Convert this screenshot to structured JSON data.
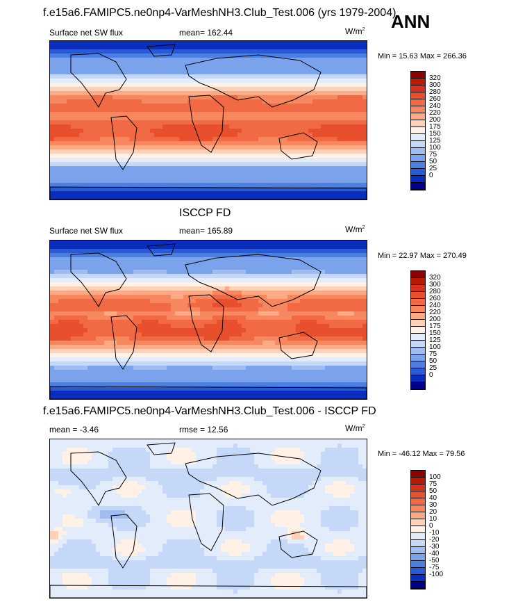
{
  "season": "ANN",
  "panels": [
    {
      "title": "f.e15a6.FAMIPC5.ne0np4-VarMeshNH3.Club_Test.006 (yrs 1979-2004)",
      "left_label": "Surface net SW flux",
      "mid_label": "mean= 162.44",
      "units": "W/m",
      "units_sup": "2",
      "min_max": "Min =  15.63 Max = 266.36",
      "colorbar": {
        "ticks": [
          "320",
          "300",
          "280",
          "260",
          "240",
          "220",
          "200",
          "175",
          "150",
          "125",
          "100",
          "75",
          "50",
          "25",
          "0"
        ],
        "colors": [
          "#8b0000",
          "#b81a06",
          "#d7301f",
          "#e8502d",
          "#f26a44",
          "#f7875f",
          "#fbaa85",
          "#fdd1b8",
          "#fff1e6",
          "#e3ecfa",
          "#c5d8f7",
          "#9fbdf2",
          "#7aa3ec",
          "#4d7fe0",
          "#2a5bd6",
          "#0b2dbd",
          "#00008b"
        ]
      }
    },
    {
      "title": "ISCCP FD",
      "left_label": "Surface net SW flux",
      "mid_label": "mean= 165.89",
      "units": "W/m",
      "units_sup": "2",
      "min_max": "Min =  22.97 Max = 270.49",
      "colorbar": {
        "ticks": [
          "320",
          "300",
          "280",
          "260",
          "240",
          "220",
          "200",
          "175",
          "150",
          "125",
          "100",
          "75",
          "50",
          "25",
          "0"
        ],
        "colors": [
          "#8b0000",
          "#b81a06",
          "#d7301f",
          "#e8502d",
          "#f26a44",
          "#f7875f",
          "#fbaa85",
          "#fdd1b8",
          "#fff1e6",
          "#e3ecfa",
          "#c5d8f7",
          "#9fbdf2",
          "#7aa3ec",
          "#4d7fe0",
          "#2a5bd6",
          "#0b2dbd",
          "#00008b"
        ]
      }
    },
    {
      "title": "f.e15a6.FAMIPC5.ne0np4-VarMeshNH3.Club_Test.006 - ISCCP FD",
      "left_label": "mean =  -3.46",
      "mid_label": "rmse =  12.56",
      "units": "W/m",
      "units_sup": "2",
      "min_max": "Min = -46.12 Max =  79.56",
      "colorbar": {
        "ticks": [
          "100",
          "75",
          "50",
          "40",
          "30",
          "20",
          "10",
          "0",
          "-10",
          "-20",
          "-30",
          "-40",
          "-50",
          "-75",
          "-100"
        ],
        "colors": [
          "#8b0000",
          "#b81a06",
          "#d7301f",
          "#e8502d",
          "#f26a44",
          "#f7875f",
          "#fbaa85",
          "#fdd1b8",
          "#fff1e6",
          "#e3ecfa",
          "#c5d8f7",
          "#9fbdf2",
          "#7aa3ec",
          "#4d7fe0",
          "#2a5bd6",
          "#0b2dbd",
          "#00008b"
        ]
      }
    }
  ],
  "chart_data": [
    {
      "type": "heatmap",
      "title": "f.e15a6.FAMIPC5.ne0np4-VarMeshNH3.Club_Test.006 (yrs 1979-2004)",
      "variable": "Surface net SW flux",
      "units": "W/m2",
      "mean": 162.44,
      "min": 15.63,
      "max": 266.36,
      "contour_levels": [
        0,
        25,
        50,
        75,
        100,
        125,
        150,
        175,
        200,
        220,
        240,
        260,
        280,
        300,
        320
      ]
    },
    {
      "type": "heatmap",
      "title": "ISCCP FD",
      "variable": "Surface net SW flux",
      "units": "W/m2",
      "mean": 165.89,
      "min": 22.97,
      "max": 270.49,
      "contour_levels": [
        0,
        25,
        50,
        75,
        100,
        125,
        150,
        175,
        200,
        220,
        240,
        260,
        280,
        300,
        320
      ]
    },
    {
      "type": "heatmap",
      "title": "f.e15a6.FAMIPC5.ne0np4-VarMeshNH3.Club_Test.006 - ISCCP FD",
      "units": "W/m2",
      "mean": -3.46,
      "rmse": 12.56,
      "min": -46.12,
      "max": 79.56,
      "contour_levels": [
        -100,
        -75,
        -50,
        -40,
        -30,
        -20,
        -10,
        0,
        10,
        20,
        30,
        40,
        50,
        75,
        100
      ]
    }
  ]
}
